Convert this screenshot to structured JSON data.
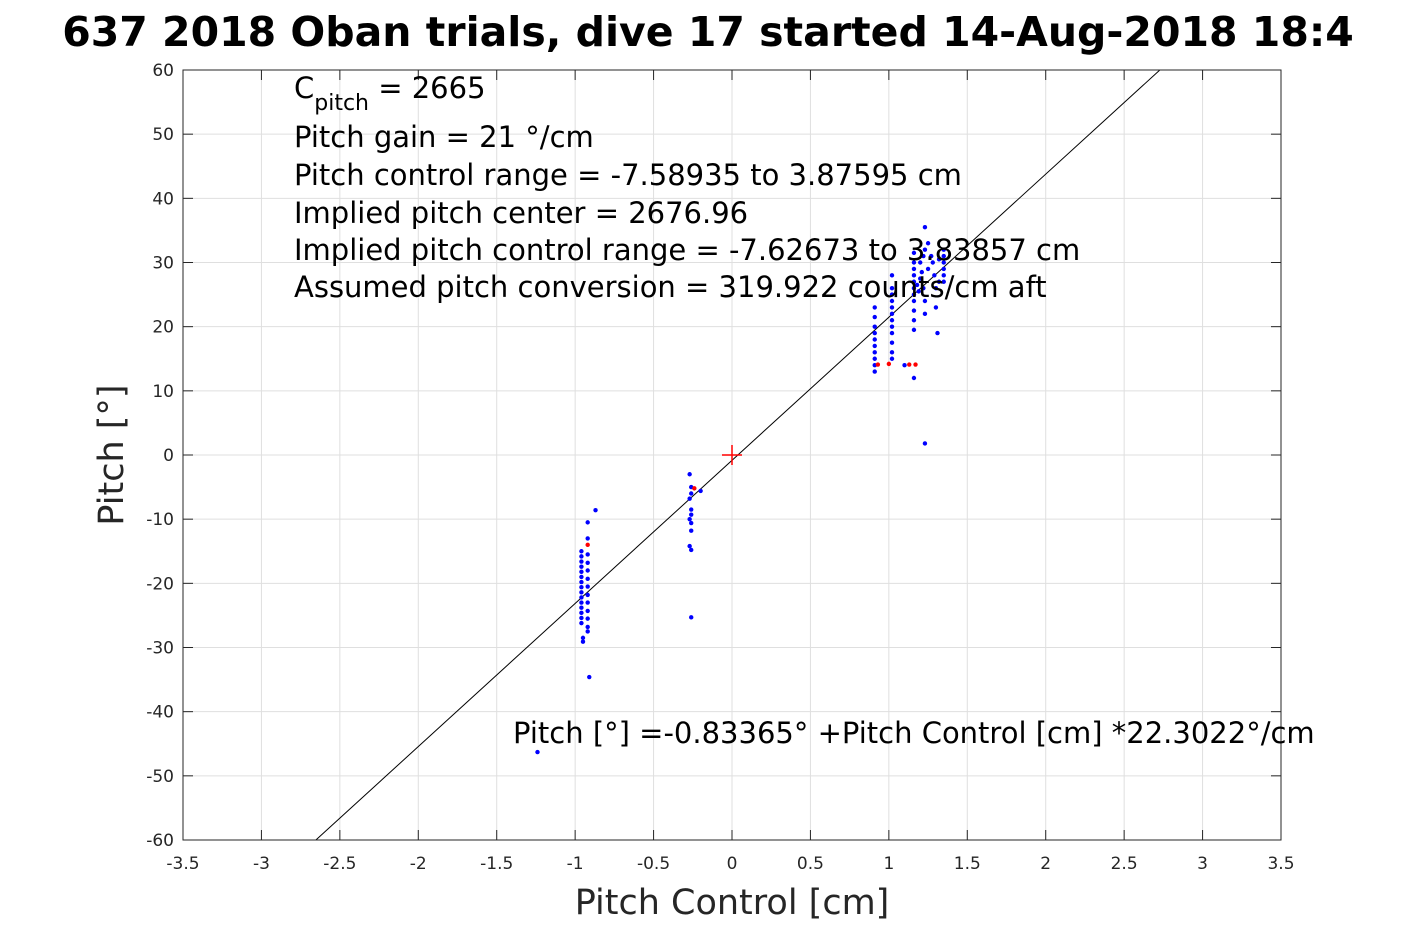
{
  "chart_data": {
    "type": "scatter",
    "title": "637 2018 Oban trials, dive 17 started 14-Aug-2018 18:4",
    "xlabel": "Pitch Control [cm]",
    "ylabel": "Pitch [°]",
    "xlim": [
      -3.5,
      3.5
    ],
    "ylim": [
      -60,
      60
    ],
    "xticks": [
      "-3.5",
      "-3",
      "-2.5",
      "-2",
      "-1.5",
      "-1",
      "-0.5",
      "0",
      "0.5",
      "1",
      "1.5",
      "2",
      "2.5",
      "3",
      "3.5"
    ],
    "yticks": [
      "60",
      "50",
      "40",
      "30",
      "20",
      "10",
      "0",
      "-10",
      "-20",
      "-30",
      "-40",
      "-50",
      "-60"
    ],
    "grid": true,
    "annotations": {
      "c_pitch_base": "C",
      "c_pitch_sub": "pitch",
      "c_pitch_value": " = 2665",
      "lines": [
        "Pitch gain = 21 °/cm",
        "Pitch control range = -7.58935 to 3.87595 cm",
        "Implied pitch center = 2676.96",
        "Implied pitch control range = -7.62673 to 3.83857 cm",
        "Assumed pitch conversion = 319.922 counts/cm aft"
      ],
      "fit_equation": "Pitch [°] =-0.83365° +Pitch Control [cm] *22.3022°/cm"
    },
    "fit_line": {
      "intercept": -0.83365,
      "slope": 22.3022,
      "color": "#000000"
    },
    "center_marker": {
      "x": 0,
      "y": 0,
      "color": "#ff0000"
    },
    "series": [
      {
        "color": "#0000ff",
        "points": [
          [
            -1.24,
            -46.3
          ],
          [
            -0.91,
            -34.6
          ],
          [
            -0.87,
            -8.6
          ],
          [
            -0.96,
            -15.0
          ],
          [
            -0.96,
            -15.8
          ],
          [
            -0.96,
            -16.6
          ],
          [
            -0.96,
            -17.4
          ],
          [
            -0.96,
            -18.2
          ],
          [
            -0.96,
            -19.0
          ],
          [
            -0.96,
            -19.8
          ],
          [
            -0.96,
            -20.6
          ],
          [
            -0.96,
            -21.4
          ],
          [
            -0.96,
            -22.2
          ],
          [
            -0.96,
            -23.0
          ],
          [
            -0.96,
            -23.8
          ],
          [
            -0.96,
            -24.6
          ],
          [
            -0.96,
            -25.4
          ],
          [
            -0.96,
            -26.2
          ],
          [
            -0.95,
            -28.5
          ],
          [
            -0.95,
            -29.1
          ],
          [
            -0.92,
            -10.5
          ],
          [
            -0.92,
            -13.0
          ],
          [
            -0.92,
            -15.5
          ],
          [
            -0.92,
            -16.8
          ],
          [
            -0.92,
            -18.0
          ],
          [
            -0.92,
            -19.3
          ],
          [
            -0.92,
            -20.5
          ],
          [
            -0.92,
            -21.8
          ],
          [
            -0.92,
            -23.0
          ],
          [
            -0.92,
            -24.3
          ],
          [
            -0.92,
            -25.5
          ],
          [
            -0.92,
            -26.8
          ],
          [
            -0.92,
            -27.5
          ],
          [
            -0.27,
            -3.0
          ],
          [
            -0.26,
            -5.0
          ],
          [
            -0.26,
            -6.0
          ],
          [
            -0.27,
            -6.8
          ],
          [
            -0.26,
            -8.5
          ],
          [
            -0.26,
            -9.3
          ],
          [
            -0.27,
            -10.0
          ],
          [
            -0.26,
            -10.6
          ],
          [
            -0.26,
            -11.8
          ],
          [
            -0.27,
            -14.2
          ],
          [
            -0.26,
            -14.8
          ],
          [
            -0.26,
            -25.3
          ],
          [
            -0.2,
            -5.6
          ],
          [
            0.91,
            13.0
          ],
          [
            0.91,
            14.0
          ],
          [
            0.91,
            15.0
          ],
          [
            0.91,
            16.0
          ],
          [
            0.91,
            17.0
          ],
          [
            0.91,
            18.0
          ],
          [
            0.91,
            19.0
          ],
          [
            0.91,
            20.0
          ],
          [
            0.91,
            21.5
          ],
          [
            0.91,
            23.0
          ],
          [
            1.02,
            15.0
          ],
          [
            1.02,
            16.0
          ],
          [
            1.02,
            17.5
          ],
          [
            1.02,
            19.0
          ],
          [
            1.02,
            20.0
          ],
          [
            1.02,
            21.0
          ],
          [
            1.02,
            22.0
          ],
          [
            1.02,
            23.0
          ],
          [
            1.02,
            24.0
          ],
          [
            1.02,
            25.0
          ],
          [
            1.02,
            26.0
          ],
          [
            1.02,
            28.0
          ],
          [
            1.16,
            12.0
          ],
          [
            1.16,
            19.5
          ],
          [
            1.16,
            21.0
          ],
          [
            1.16,
            22.5
          ],
          [
            1.16,
            24.0
          ],
          [
            1.16,
            25.0
          ],
          [
            1.16,
            26.0
          ],
          [
            1.16,
            27.0
          ],
          [
            1.16,
            28.0
          ],
          [
            1.16,
            29.0
          ],
          [
            1.16,
            30.0
          ],
          [
            1.16,
            31.5
          ],
          [
            1.18,
            26.5
          ],
          [
            1.19,
            25.5
          ],
          [
            1.2,
            27.5
          ],
          [
            1.2,
            30.0
          ],
          [
            1.21,
            28.5
          ],
          [
            1.22,
            31.0
          ],
          [
            1.22,
            26.0
          ],
          [
            1.23,
            24.0
          ],
          [
            1.23,
            22.0
          ],
          [
            1.23,
            32.0
          ],
          [
            1.23,
            35.5
          ],
          [
            1.23,
            1.8
          ],
          [
            1.25,
            33.0
          ],
          [
            1.25,
            29.0
          ],
          [
            1.27,
            31.0
          ],
          [
            1.28,
            30.0
          ],
          [
            1.29,
            28.0
          ],
          [
            1.3,
            26.0
          ],
          [
            1.3,
            23.0
          ],
          [
            1.31,
            19.0
          ],
          [
            1.32,
            30.5
          ],
          [
            1.32,
            27.0
          ],
          [
            1.35,
            27.0
          ],
          [
            1.35,
            28.0
          ],
          [
            1.35,
            29.0
          ],
          [
            1.35,
            30.0
          ],
          [
            1.35,
            31.0
          ],
          [
            1.35,
            32.0
          ],
          [
            1.1,
            14.0
          ]
        ]
      },
      {
        "color": "#ff0000",
        "points": [
          [
            -0.92,
            -14.0
          ],
          [
            -0.24,
            -5.2
          ],
          [
            0.93,
            14.1
          ],
          [
            1.0,
            14.2
          ],
          [
            1.13,
            14.1
          ],
          [
            1.17,
            14.1
          ]
        ]
      }
    ]
  }
}
